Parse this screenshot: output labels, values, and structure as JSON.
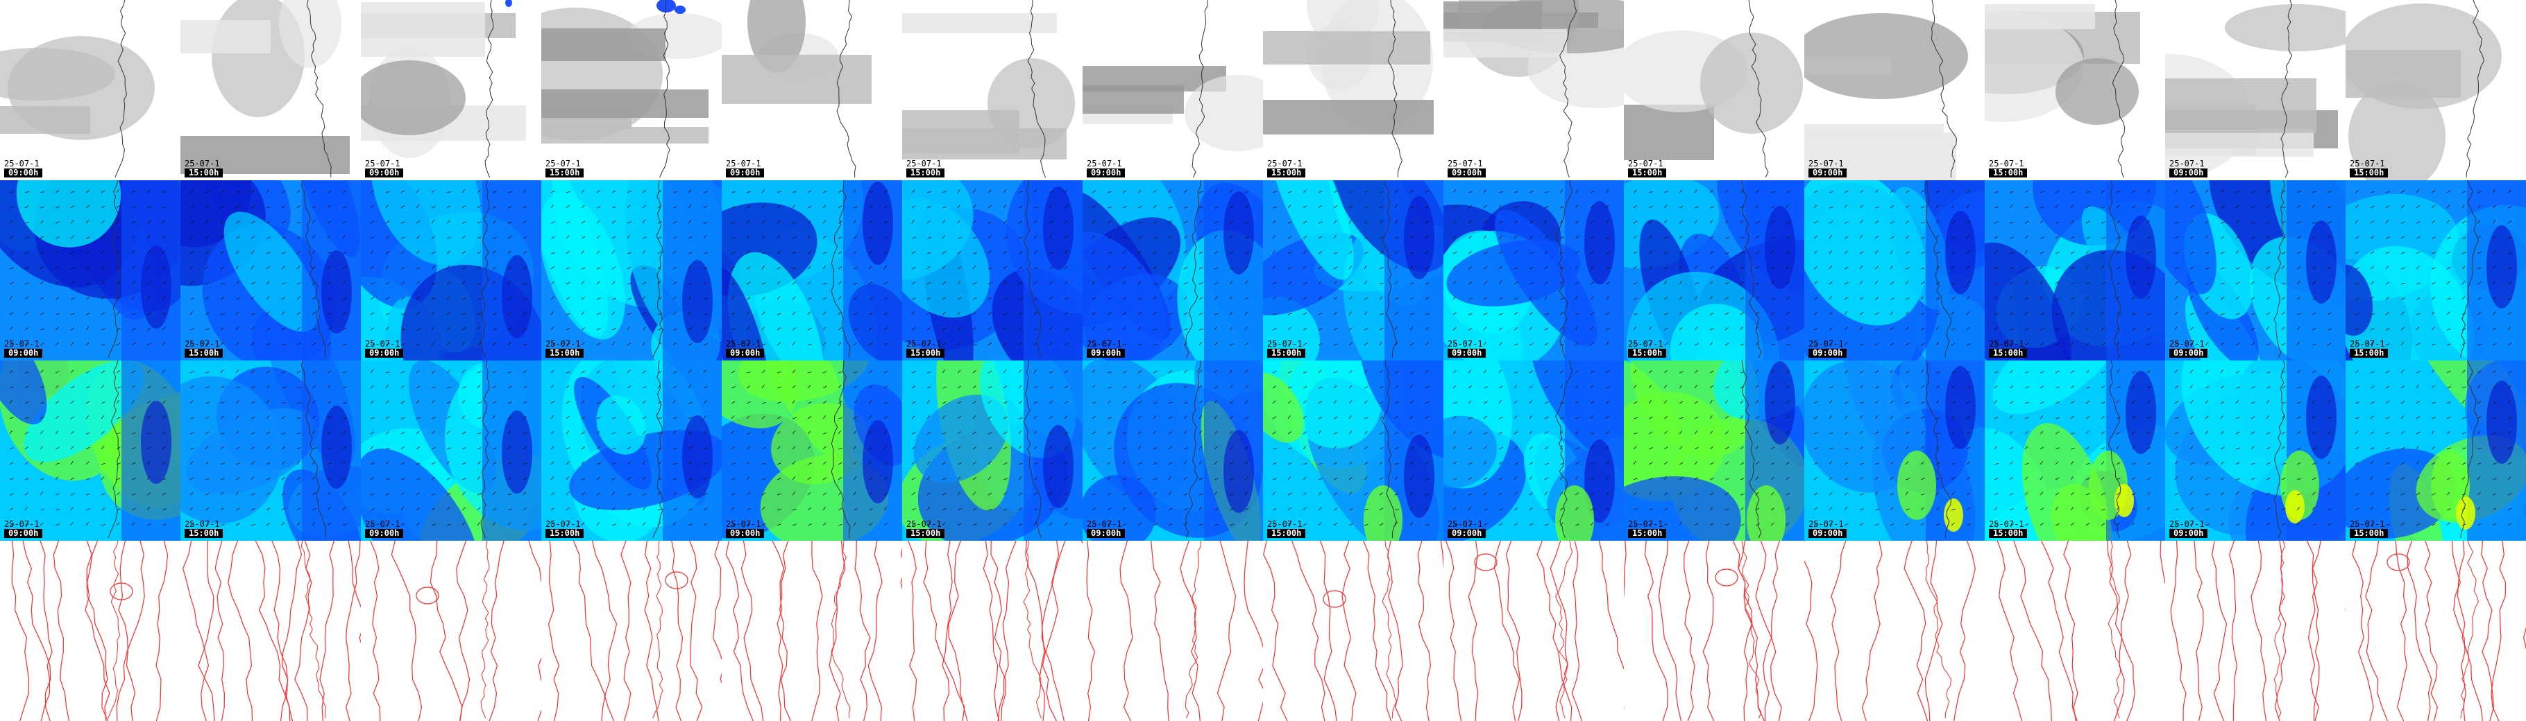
{
  "panel_rows": [
    {
      "name": "cloud",
      "stamps_visible": true
    },
    {
      "name": "wind-low",
      "stamps_visible": true
    },
    {
      "name": "wind-high",
      "stamps_visible": true
    },
    {
      "name": "pressure",
      "stamps_visible": false
    }
  ],
  "stamps": [
    {
      "date": "25-07-1",
      "time": "09:00h"
    },
    {
      "date": "25-07-1",
      "time": "15:00h"
    },
    {
      "date": "25-07-1",
      "time": "09:00h"
    },
    {
      "date": "25-07-1",
      "time": "15:00h"
    },
    {
      "date": "25-07-1",
      "time": "09:00h"
    },
    {
      "date": "25-07-1",
      "time": "15:00h"
    },
    {
      "date": "25-07-1",
      "time": "09:00h"
    },
    {
      "date": "25-07-1",
      "time": "15:00h"
    },
    {
      "date": "25-07-1",
      "time": "09:00h"
    },
    {
      "date": "25-07-1",
      "time": "15:00h"
    },
    {
      "date": "25-07-1",
      "time": "09:00h"
    },
    {
      "date": "25-07-1",
      "time": "15:00h"
    },
    {
      "date": "25-07-1",
      "time": "09:00h"
    },
    {
      "date": "25-07-1",
      "time": "15:00h"
    }
  ],
  "colors": {
    "cloud_light": "#e6e6e6",
    "cloud_mid": "#bdbdbd",
    "cloud_dark": "#9a9a9a",
    "precip": "#1f4fff",
    "wind_deep": "#0a1fd0",
    "wind_blue": "#0a52ff",
    "wind_mid": "#0b8cff",
    "wind_cyan": "#00ccff",
    "wind_aqua": "#00f5ff",
    "wind_green": "#66ff33",
    "wind_yellow": "#ddff00",
    "isobar": "#ff2a2a",
    "coast": "#333333"
  }
}
